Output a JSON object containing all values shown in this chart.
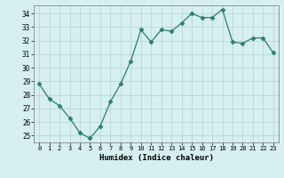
{
  "x": [
    0,
    1,
    2,
    3,
    4,
    5,
    6,
    7,
    8,
    9,
    10,
    11,
    12,
    13,
    14,
    15,
    16,
    17,
    18,
    19,
    20,
    21,
    22,
    23
  ],
  "y": [
    28.8,
    27.7,
    27.2,
    26.3,
    25.2,
    24.8,
    25.7,
    27.5,
    28.8,
    30.5,
    32.8,
    31.9,
    32.8,
    32.7,
    33.3,
    34.0,
    33.7,
    33.7,
    34.3,
    31.9,
    31.8,
    32.2,
    32.2,
    31.1
  ],
  "line_color": "#2e7d6e",
  "marker": "D",
  "marker_size": 2.5,
  "bg_color": "#d6f0ef",
  "grid_color": "#b8d8d4",
  "xlabel": "Humidex (Indice chaleur)",
  "ylim": [
    24.5,
    34.6
  ],
  "xlim": [
    -0.5,
    23.5
  ],
  "yticks": [
    25,
    26,
    27,
    28,
    29,
    30,
    31,
    32,
    33,
    34
  ],
  "xticks": [
    0,
    1,
    2,
    3,
    4,
    5,
    6,
    7,
    8,
    9,
    10,
    11,
    12,
    13,
    14,
    15,
    16,
    17,
    18,
    19,
    20,
    21,
    22,
    23
  ]
}
